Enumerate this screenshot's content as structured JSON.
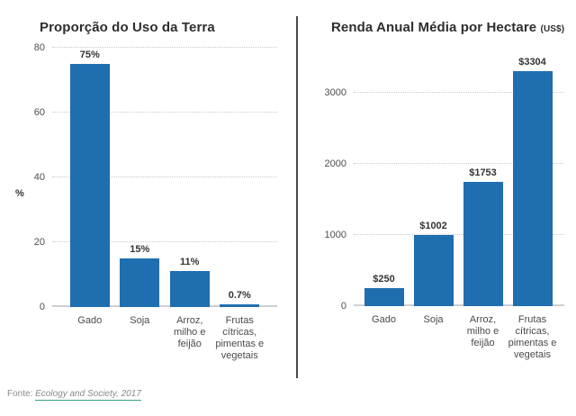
{
  "colors": {
    "bar": "#1f6eb0",
    "gridline": "#c9c9c9",
    "axis_line": "#d0d0d0",
    "title": "#2e2e2e",
    "tick_label": "#4d4d4d",
    "divider": "#4a4a4a",
    "footer_text": "#8a8a8a",
    "link_underline": "#35a384"
  },
  "footer": {
    "label": "Fonte:",
    "link_text": "Ecology and Society, 2017"
  },
  "chart_data": [
    {
      "type": "bar",
      "title": "Proporção do Uso da Terra",
      "title_note": "",
      "xlabel": "",
      "ylabel": "%",
      "ylim": [
        0,
        80
      ],
      "yticks": [
        80,
        60,
        40,
        20,
        0
      ],
      "grid": "horizontal-dotted",
      "legend": "none",
      "categories": [
        "Gado",
        "Soja",
        "Arroz,\nmilho e\nfeijão",
        "Frutas\ncítricas,\npimentas e\nvegetais"
      ],
      "values": [
        75,
        15,
        11,
        0.7
      ],
      "value_labels": [
        "75%",
        "15%",
        "11%",
        "0.7%"
      ]
    },
    {
      "type": "bar",
      "title": "Renda Anual Média por Hectare",
      "title_note": "(US$)",
      "xlabel": "",
      "ylabel": "",
      "ylim": [
        0,
        3700
      ],
      "yticks": [
        3000,
        2000,
        1000,
        0
      ],
      "grid": "horizontal-dotted",
      "legend": "none",
      "categories": [
        "Gado",
        "Soja",
        "Arroz,\nmilho e\nfeijão",
        "Frutas\ncítricas,\npimentas e\nvegetais"
      ],
      "values": [
        250,
        1002,
        1753,
        3304
      ],
      "value_labels": [
        "$250",
        "$1002",
        "$1753",
        "$3304"
      ]
    }
  ]
}
